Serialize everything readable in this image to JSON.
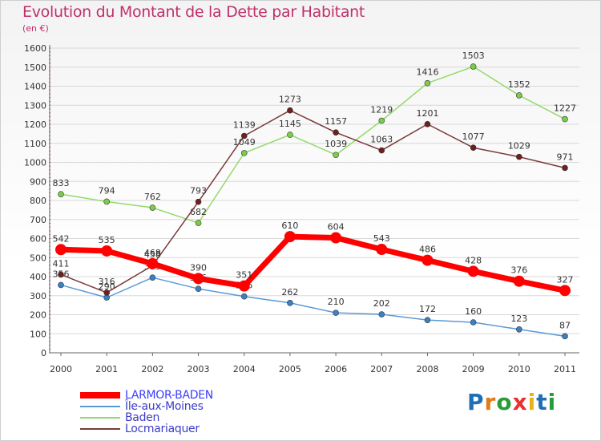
{
  "title": "Evolution du Montant de la Dette par Habitant",
  "subtitle": "(en €)",
  "logo": {
    "text": "Proxiti",
    "colors": [
      "#1f6fb5",
      "#e07a1a",
      "#2a9b3a",
      "#e8322f",
      "#e8b21a",
      "#1f6fb5",
      "#2a9b3a"
    ]
  },
  "chart_data": {
    "type": "line",
    "x": [
      "2000",
      "2001",
      "2002",
      "2003",
      "2004",
      "2005",
      "2006",
      "2007",
      "2008",
      "2009",
      "2010",
      "2011"
    ],
    "ylim": [
      0,
      1600
    ],
    "yticks": [
      0,
      100,
      200,
      300,
      400,
      500,
      600,
      700,
      800,
      900,
      1000,
      1100,
      1200,
      1300,
      1400,
      1500,
      1600
    ],
    "grid": "horizontal",
    "legend": "bottom-left",
    "series": [
      {
        "name": "Île-aux-Moines",
        "color": "#5a9ad6",
        "point_color": "#3c7fc4",
        "values": [
          356,
          290,
          395,
          336,
          296,
          262,
          210,
          202,
          172,
          160,
          123,
          87
        ],
        "labels": [
          "356",
          "290",
          "395",
          "336",
          "296",
          "262",
          "210",
          "202",
          "172",
          "160",
          "123",
          "87"
        ]
      },
      {
        "name": "Baden",
        "color": "#94d96a",
        "point_color": "#7ccc4a",
        "values": [
          833,
          794,
          762,
          682,
          1049,
          1145,
          1039,
          1219,
          1416,
          1503,
          1352,
          1227
        ],
        "labels": [
          "833",
          "794",
          "762",
          "682",
          "1049",
          "1145",
          "1039",
          "1219",
          "1416",
          "1503",
          "1352",
          "1227"
        ]
      },
      {
        "name": "Locmariaquer",
        "color": "#7a3a3a",
        "point_color": "#6e1f1f",
        "values": [
          411,
          316,
          458,
          793,
          1139,
          1273,
          1157,
          1063,
          1201,
          1077,
          1029,
          971
        ],
        "labels": [
          "411",
          "316",
          "458",
          "793",
          "1139",
          "1273",
          "1157",
          "1063",
          "1201",
          "1077",
          "1029",
          "971"
        ]
      },
      {
        "name": "LARMOR-BADEN",
        "color": "#ff0000",
        "point_color": "#ff0000",
        "thick": true,
        "values": [
          542,
          535,
          468,
          390,
          351,
          610,
          604,
          543,
          486,
          428,
          376,
          327
        ],
        "labels": [
          "542",
          "535",
          "468",
          "390",
          "351",
          "610",
          "604",
          "543",
          "486",
          "428",
          "376",
          "327"
        ]
      }
    ],
    "legend_order": [
      "LARMOR-BADEN",
      "Île-aux-Moines",
      "Baden",
      "Locmariaquer"
    ]
  }
}
